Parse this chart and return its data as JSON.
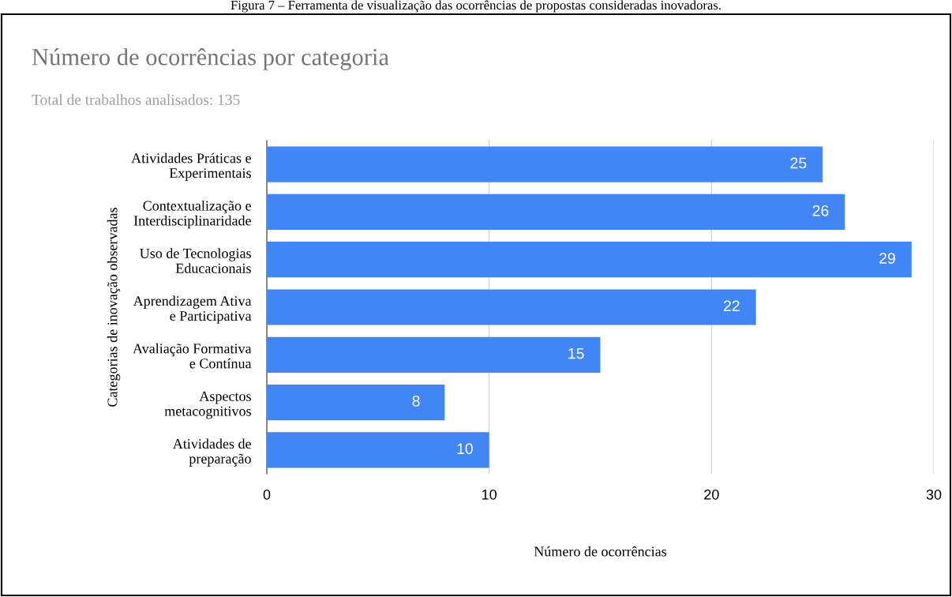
{
  "chart_data": {
    "type": "bar",
    "orientation": "horizontal",
    "title": "Número de ocorrências por categoria",
    "subtitle": "Total de trabalhos analisados: 135",
    "xlabel": "Número de ocorrências",
    "ylabel": "Categorias de inovação observadas",
    "annotations": [
      "Figura 7 – Ferramenta de visualização das ocorrências de propostas consideradas inovadoras."
    ],
    "categories": [
      "Atividades Práticas e\nExperimentais",
      "Contextualização e\nInterdisciplinaridade",
      "Uso de Tecnologias\nEducacionais",
      "Aprendizagem Ativa\ne Participativa",
      "Avaliação Formativa\ne Contínua",
      "Aspectos\nmetacognitivos",
      "Atividades de\npreparação"
    ],
    "values": [
      25,
      26,
      29,
      22,
      15,
      8,
      10
    ],
    "color": "#4285f4",
    "xlim": [
      0,
      30
    ],
    "xticks": [
      0,
      10,
      20,
      30
    ],
    "grid": "x",
    "data_labels": true,
    "legend": false
  }
}
